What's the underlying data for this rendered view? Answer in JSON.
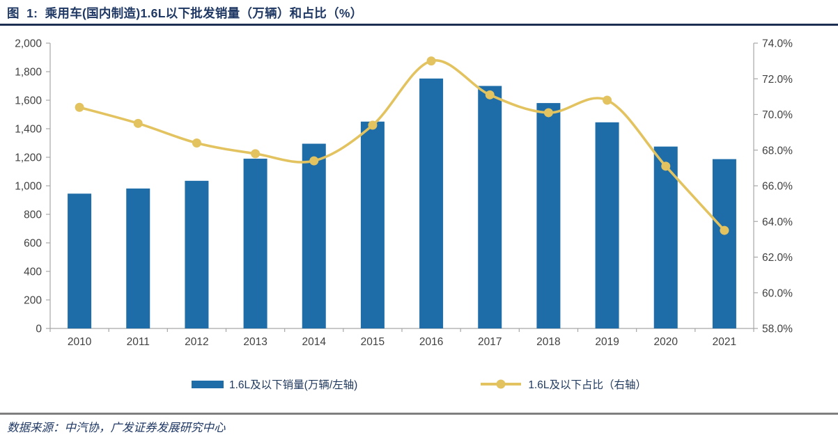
{
  "header": {
    "title": "图  1:  乘用车(国内制造)1.6L以下批发销量（万辆）和占比（%）"
  },
  "chart_data": {
    "type": "bar+line",
    "title": "乘用车(国内制造)1.6L以下批发销量（万辆）和占比（%）",
    "categories": [
      "2010",
      "2011",
      "2012",
      "2013",
      "2014",
      "2015",
      "2016",
      "2017",
      "2018",
      "2019",
      "2020",
      "2021"
    ],
    "series": [
      {
        "name": "1.6L及以下销量(万辆/左轴)",
        "type": "bar",
        "axis": "left",
        "values": [
          945,
          981,
          1035,
          1190,
          1295,
          1450,
          1752,
          1700,
          1580,
          1445,
          1275,
          1187
        ]
      },
      {
        "name": "1.6L及以下占比（右轴）",
        "type": "line",
        "axis": "right",
        "values": [
          70.4,
          69.5,
          68.4,
          67.8,
          67.4,
          69.4,
          73.0,
          71.1,
          70.1,
          70.8,
          67.1,
          63.5
        ]
      }
    ],
    "left_axis": {
      "min": 0,
      "max": 2000,
      "step": 200,
      "format": "thousands"
    },
    "right_axis": {
      "min": 58,
      "max": 74,
      "step": 2,
      "format": "percent1"
    },
    "grid": false,
    "legend_position": "bottom"
  },
  "legend": {
    "bar_label": "1.6L及以下销量(万辆/左轴)",
    "line_label": "1.6L及以下占比（右轴）"
  },
  "colors": {
    "bar": "#1E6CA8",
    "line": "#E2C35F",
    "marker": "#E2C35F",
    "axis_line": "#A6A6A6",
    "axis_text": "#404040",
    "title_text": "#1F3864"
  },
  "footer": {
    "source": "数据来源：中汽协，广发证券发展研究中心"
  }
}
